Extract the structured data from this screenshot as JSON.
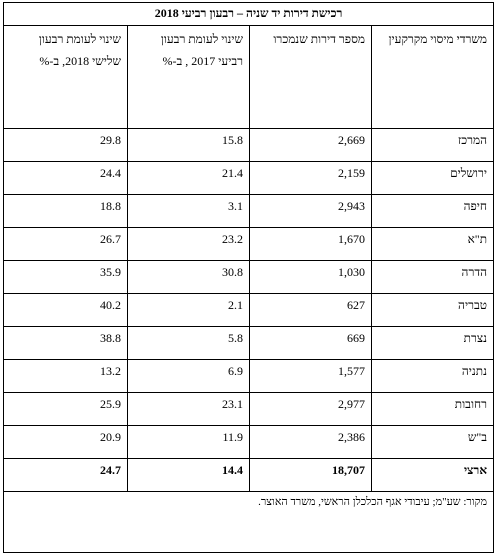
{
  "title": "רכישת דירות יד שניה – רבעון רביעי 2018",
  "table": {
    "header": [
      "משרדי מיסוי מקרקעין",
      "מספר דירות שנמכרו",
      "שינוי לעומת רבעון רביעי 2017 , ב-%",
      "שינוי לעומת רבעון שלישי 2018, ב-%"
    ],
    "rows": [
      [
        "המרכז",
        "2,669",
        "15.8",
        "29.8"
      ],
      [
        "ירושלים",
        "2,159",
        "21.4",
        "24.4"
      ],
      [
        "חיפה",
        "2,943",
        "3.1",
        "18.8"
      ],
      [
        "ת\"א",
        "1,670",
        "23.2",
        "26.7"
      ],
      [
        "הדרה",
        "1,030",
        "30.8",
        "35.9"
      ],
      [
        "טבריה",
        "627",
        "2.1",
        "40.2"
      ],
      [
        "נצרת",
        "669",
        "5.8",
        "38.8"
      ],
      [
        "נתניה",
        "1,577",
        "6.9",
        "13.2"
      ],
      [
        "רחובות",
        "2,977",
        "23.1",
        "25.9"
      ],
      [
        "ב\"ש",
        "2,386",
        "11.9",
        "20.9"
      ]
    ],
    "total": [
      "ארצי",
      "18,707",
      "14.4",
      "24.7"
    ]
  },
  "source": "מקור: שע\"מ; עיבודי אגף הכלכלן הראשי, משרד האוצר."
}
